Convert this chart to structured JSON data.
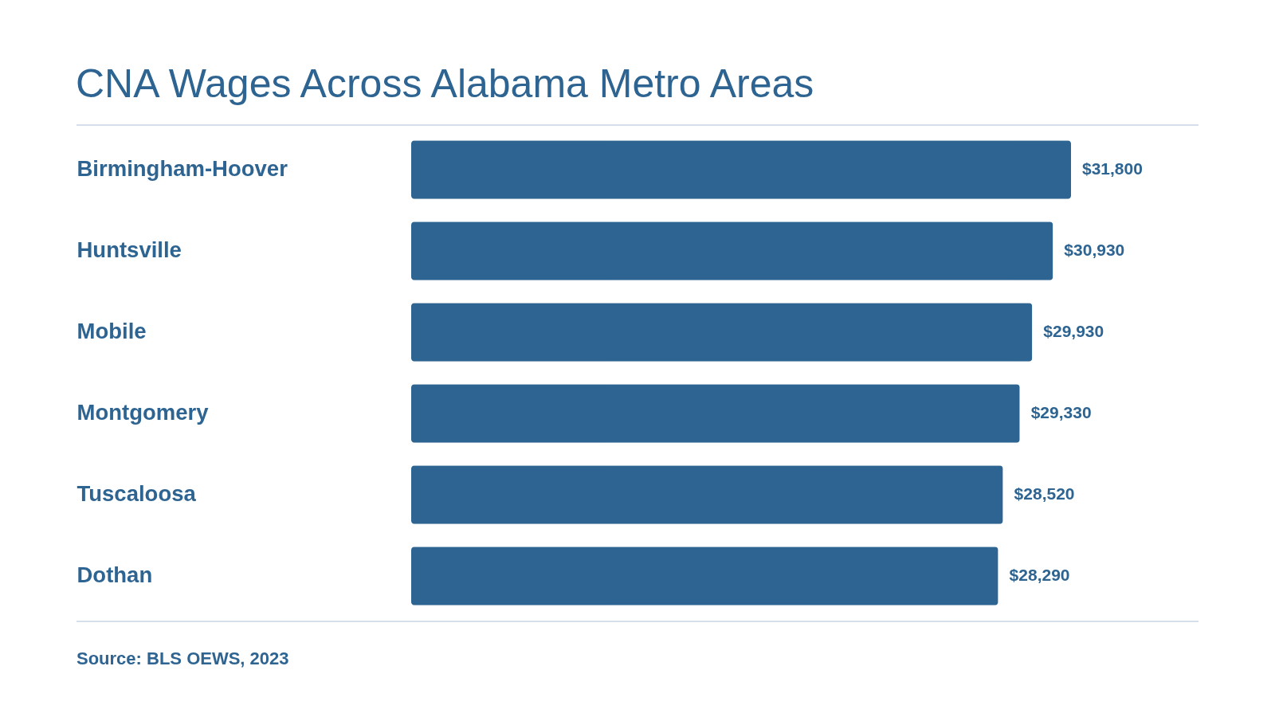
{
  "chart_data": {
    "type": "bar",
    "orientation": "horizontal",
    "title": "CNA Wages Across Alabama Metro Areas",
    "categories": [
      "Birmingham-Hoover",
      "Huntsville",
      "Mobile",
      "Montgomery",
      "Tuscaloosa",
      "Dothan"
    ],
    "values": [
      31800,
      30930,
      29930,
      29330,
      28520,
      28290
    ],
    "value_labels": [
      "$31,800",
      "$30,930",
      "$29,930",
      "$29,330",
      "$28,520",
      "$28,290"
    ],
    "color": "#2e6491",
    "annotations": [
      "Source: BLS OEWS, 2023"
    ],
    "tick_labels": "y"
  }
}
